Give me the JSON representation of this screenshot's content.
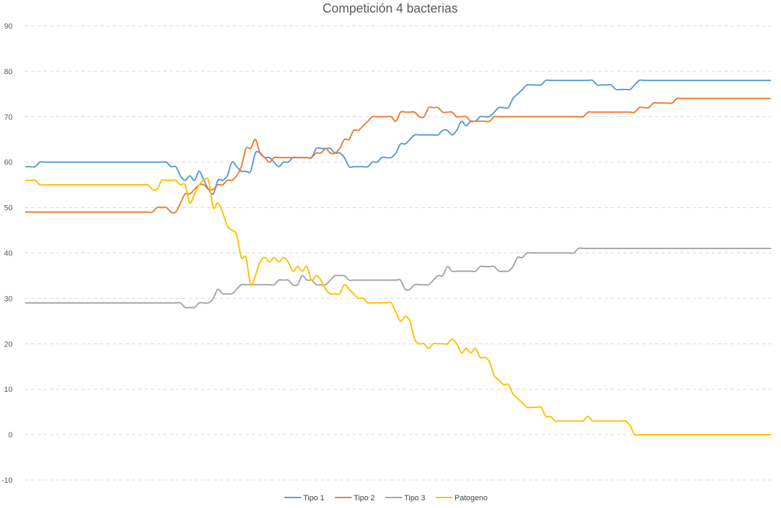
{
  "chart_data": {
    "type": "line",
    "title": "Competición 4 bacterias",
    "xlabel": "",
    "ylabel": "",
    "ylim": [
      -10,
      90
    ],
    "yticks": [
      -10,
      0,
      10,
      20,
      30,
      40,
      50,
      60,
      70,
      80,
      90
    ],
    "x_points": 160,
    "grid": true,
    "legend": "bottom",
    "series": [
      {
        "name": "Tipo 1",
        "color": "#5b9bd5",
        "values": [
          59,
          59,
          59,
          60,
          60,
          60,
          60,
          60,
          60,
          60,
          60,
          60,
          60,
          60,
          60,
          60,
          60,
          60,
          60,
          60,
          60,
          60,
          60,
          60,
          60,
          60,
          60,
          60,
          60,
          60,
          60,
          59,
          59,
          57,
          56,
          57,
          56,
          58,
          56,
          54,
          53,
          56,
          56,
          57,
          60,
          59,
          58,
          58,
          58,
          62,
          62,
          61,
          61,
          60,
          59,
          60,
          60,
          61,
          61,
          61,
          61,
          61,
          63,
          63,
          63,
          63,
          62,
          62,
          61,
          59,
          59,
          59,
          59,
          59,
          60,
          60,
          61,
          61,
          61,
          62,
          64,
          64,
          65,
          66,
          66,
          66,
          66,
          66,
          66,
          67,
          67,
          66,
          67,
          69,
          68,
          69,
          69,
          70,
          70,
          70,
          71,
          72,
          72,
          72,
          74,
          75,
          76,
          77,
          77,
          77,
          77,
          78,
          78,
          78,
          78,
          78,
          78,
          78,
          78,
          78,
          78,
          78,
          77,
          77,
          77,
          77,
          76,
          76,
          76,
          76,
          77,
          78,
          78,
          78,
          78,
          78,
          78,
          78,
          78,
          78,
          78,
          78,
          78,
          78,
          78,
          78,
          78,
          78,
          78,
          78,
          78,
          78,
          78,
          78,
          78,
          78,
          78,
          78,
          78,
          78
        ]
      },
      {
        "name": "Tipo 2",
        "color": "#ed7d31",
        "values": [
          49,
          49,
          49,
          49,
          49,
          49,
          49,
          49,
          49,
          49,
          49,
          49,
          49,
          49,
          49,
          49,
          49,
          49,
          49,
          49,
          49,
          49,
          49,
          49,
          49,
          49,
          49,
          49,
          50,
          50,
          50,
          49,
          49,
          51,
          53,
          53,
          54,
          55,
          55,
          54,
          54,
          55,
          55,
          56,
          56,
          57,
          59,
          63,
          63,
          65,
          62,
          61,
          60,
          61,
          61,
          61,
          61,
          61,
          61,
          61,
          61,
          61,
          62,
          62,
          63,
          62,
          62,
          63,
          65,
          65,
          67,
          67,
          68,
          69,
          70,
          70,
          70,
          70,
          70,
          69,
          71,
          71,
          71,
          71,
          70,
          70,
          72,
          72,
          72,
          71,
          71,
          71,
          70,
          70,
          70,
          69,
          69,
          69,
          69,
          69,
          70,
          70,
          70,
          70,
          70,
          70,
          70,
          70,
          70,
          70,
          70,
          70,
          70,
          70,
          70,
          70,
          70,
          70,
          70,
          70,
          71,
          71,
          71,
          71,
          71,
          71,
          71,
          71,
          71,
          71,
          71,
          72,
          72,
          72,
          73,
          73,
          73,
          73,
          73,
          74,
          74,
          74,
          74,
          74,
          74,
          74,
          74,
          74,
          74,
          74,
          74,
          74,
          74,
          74,
          74,
          74,
          74,
          74,
          74,
          74
        ]
      },
      {
        "name": "Tipo 3",
        "color": "#a5a5a5",
        "values": [
          29,
          29,
          29,
          29,
          29,
          29,
          29,
          29,
          29,
          29,
          29,
          29,
          29,
          29,
          29,
          29,
          29,
          29,
          29,
          29,
          29,
          29,
          29,
          29,
          29,
          29,
          29,
          29,
          29,
          29,
          29,
          29,
          29,
          29,
          28,
          28,
          28,
          29,
          29,
          29,
          30,
          32,
          31,
          31,
          31,
          32,
          33,
          33,
          33,
          33,
          33,
          33,
          33,
          33,
          34,
          34,
          34,
          33,
          33,
          35,
          34,
          34,
          33,
          33,
          33,
          34,
          35,
          35,
          35,
          34,
          34,
          34,
          34,
          34,
          34,
          34,
          34,
          34,
          34,
          34,
          34,
          32,
          32,
          33,
          33,
          33,
          33,
          34,
          35,
          35,
          37,
          36,
          36,
          36,
          36,
          36,
          36,
          37,
          37,
          37,
          37,
          36,
          36,
          36,
          37,
          39,
          39,
          40,
          40,
          40,
          40,
          40,
          40,
          40,
          40,
          40,
          40,
          40,
          41,
          41,
          41,
          41,
          41,
          41,
          41,
          41,
          41,
          41,
          41,
          41,
          41,
          41,
          41,
          41,
          41,
          41,
          41,
          41,
          41,
          41,
          41,
          41,
          41,
          41,
          41,
          41,
          41,
          41,
          41,
          41,
          41,
          41,
          41,
          41,
          41,
          41,
          41,
          41,
          41,
          41
        ]
      },
      {
        "name": "Patogeno",
        "color": "#ffc000",
        "values": [
          56,
          56,
          56,
          55,
          55,
          55,
          55,
          55,
          55,
          55,
          55,
          55,
          55,
          55,
          55,
          55,
          55,
          55,
          55,
          55,
          55,
          55,
          55,
          55,
          55,
          55,
          55,
          54,
          54,
          56,
          56,
          56,
          56,
          55,
          55,
          51,
          53,
          55,
          56,
          56,
          50,
          51,
          49,
          46,
          45,
          44,
          39,
          39,
          33,
          35,
          38,
          39,
          38,
          39,
          38,
          39,
          38,
          36,
          37,
          36,
          37,
          34,
          35,
          34,
          32,
          31,
          31,
          31,
          33,
          32,
          31,
          30,
          30,
          29,
          29,
          29,
          29,
          29,
          29,
          27,
          25,
          26,
          25,
          21,
          20,
          20,
          19,
          20,
          20,
          20,
          20,
          21,
          20,
          18,
          19,
          18,
          19,
          17,
          17,
          16,
          13,
          12,
          11,
          11,
          9,
          8,
          7,
          6,
          6,
          6,
          6,
          4,
          4,
          3,
          3,
          3,
          3,
          3,
          3,
          3,
          4,
          3,
          3,
          3,
          3,
          3,
          3,
          3,
          3,
          2,
          0,
          0,
          0,
          0,
          0,
          0,
          0,
          0,
          0,
          0,
          0,
          0,
          0,
          0,
          0,
          0,
          0,
          0,
          0,
          0,
          0,
          0,
          0,
          0,
          0,
          0,
          0,
          0,
          0,
          0
        ]
      }
    ]
  }
}
